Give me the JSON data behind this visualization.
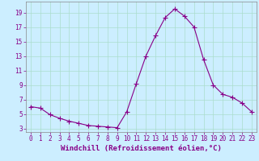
{
  "x": [
    0,
    1,
    2,
    3,
    4,
    5,
    6,
    7,
    8,
    9,
    10,
    11,
    12,
    13,
    14,
    15,
    16,
    17,
    18,
    19,
    20,
    21,
    22,
    23
  ],
  "y": [
    6.0,
    5.8,
    4.9,
    4.4,
    4.0,
    3.7,
    3.4,
    3.3,
    3.2,
    3.1,
    5.3,
    9.2,
    13.0,
    15.8,
    18.3,
    19.5,
    18.5,
    17.0,
    12.5,
    9.0,
    7.7,
    7.3,
    6.5,
    5.3
  ],
  "line_color": "#880088",
  "marker": "+",
  "marker_size": 4,
  "bg_color": "#cceeff",
  "grid_color": "#aaddcc",
  "xlabel": "Windchill (Refroidissement éolien,°C)",
  "xlabel_color": "#880088",
  "ylim": [
    2.5,
    20.5
  ],
  "xlim": [
    -0.5,
    23.5
  ],
  "yticks": [
    3,
    5,
    7,
    9,
    11,
    13,
    15,
    17,
    19
  ],
  "xticks": [
    0,
    1,
    2,
    3,
    4,
    5,
    6,
    7,
    8,
    9,
    10,
    11,
    12,
    13,
    14,
    15,
    16,
    17,
    18,
    19,
    20,
    21,
    22,
    23
  ],
  "tick_color": "#880088",
  "tick_labelsize": 5.5,
  "xlabel_fontsize": 6.5,
  "line_width": 0.8,
  "marker_ew": 0.8
}
